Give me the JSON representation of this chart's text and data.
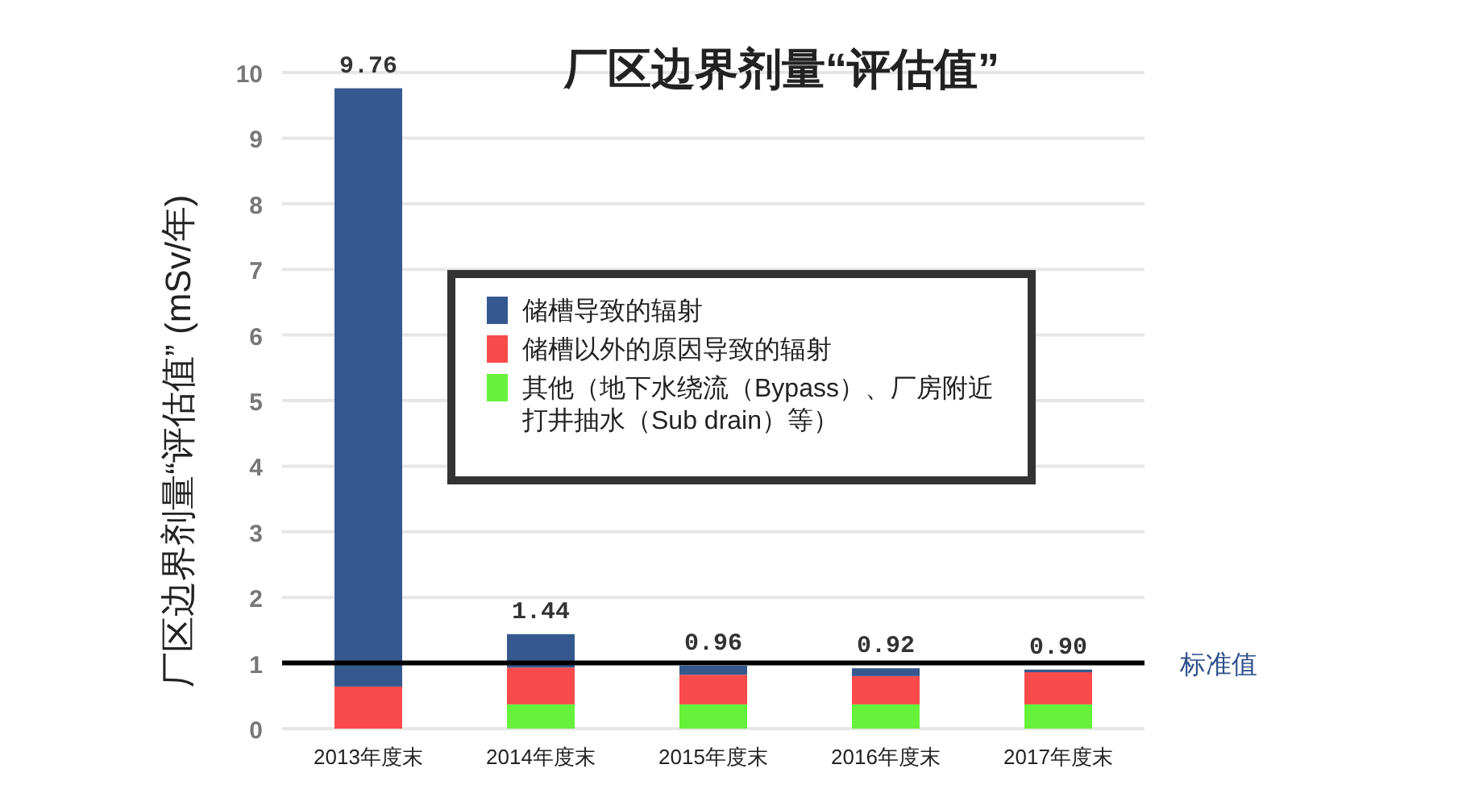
{
  "chart_data": {
    "type": "bar",
    "title": "厂区边界剂量“评估值”",
    "ylabel": "厂区边界剂量“评估值” (mSv/年)",
    "categories": [
      "2013年度末",
      "2014年度末",
      "2015年度末",
      "2016年度末",
      "2017年度末"
    ],
    "stacked": true,
    "series": [
      {
        "name": "其他（地下水绕流（Bypass）、厂房附近打井抽水（Sub drain）等）",
        "color": "#66f23b",
        "values": [
          0,
          0.37,
          0.37,
          0.37,
          0.37
        ]
      },
      {
        "name": "储槽以外的原因导致的辐射",
        "color": "#f94b4b",
        "values": [
          0.64,
          0.56,
          0.45,
          0.43,
          0.49
        ]
      },
      {
        "name": "储槽导致的辐射",
        "color": "#35598f",
        "values": [
          9.12,
          0.51,
          0.14,
          0.12,
          0.04
        ]
      }
    ],
    "totals": [
      "9.76",
      "1.44",
      "0.96",
      "0.92",
      "0.90"
    ],
    "ylim": [
      0,
      10
    ],
    "yticks": [
      0,
      1,
      2,
      3,
      4,
      5,
      6,
      7,
      8,
      9,
      10
    ],
    "grid": "y",
    "legend": "top right",
    "ref_lines": [
      {
        "axis": "y",
        "value": 1,
        "label": "标准值",
        "color": "#000000"
      }
    ]
  }
}
